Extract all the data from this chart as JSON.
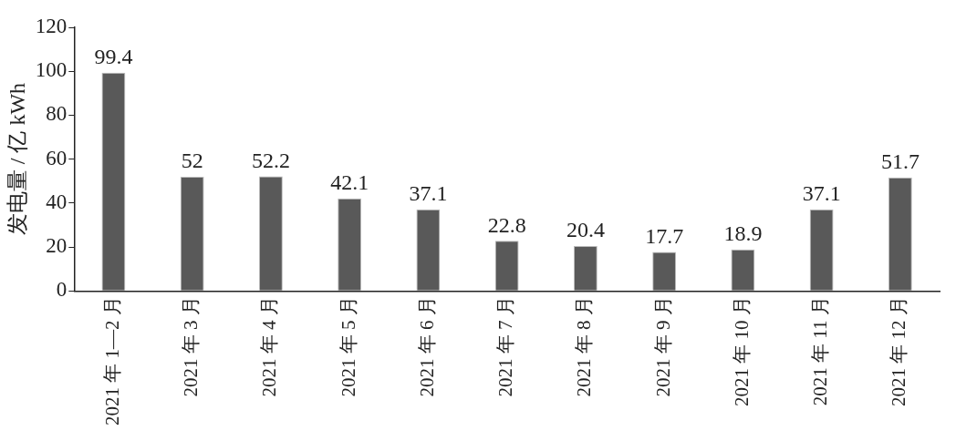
{
  "chart_data": {
    "type": "bar",
    "ylabel": "发电量 / 亿 kWh",
    "categories": [
      "2021 年 1—2 月",
      "2021 年 3 月",
      "2021 年 4 月",
      "2021 年 5 月",
      "2021 年 6 月",
      "2021 年 7 月",
      "2021 年 8 月",
      "2021 年 9 月",
      "2021 年 10 月",
      "2021 年 11 月",
      "2021 年 12 月"
    ],
    "values": [
      99.4,
      52,
      52.2,
      42.1,
      37.1,
      22.8,
      20.4,
      17.7,
      18.9,
      37.1,
      51.7
    ],
    "color": "#595959",
    "ylim": [
      0,
      120
    ],
    "yticks": [
      0,
      20,
      40,
      60,
      80,
      100,
      120
    ],
    "grid": false,
    "legend": false,
    "data_labels": true
  }
}
